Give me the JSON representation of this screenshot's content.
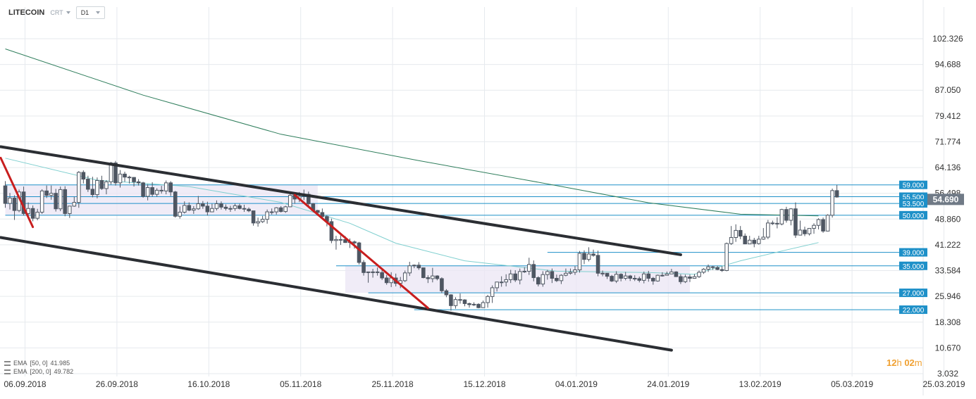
{
  "header": {
    "symbol": "LITECOIN",
    "type": "CRT",
    "timeframe": "D1"
  },
  "indicators": [
    {
      "label": "EMA",
      "params": "[50, 0]",
      "value": "41.985",
      "color": "#7fcfcf"
    },
    {
      "label": "EMA",
      "params": "[200, 0]",
      "value": "49.782",
      "color": "#2e7d5b"
    }
  ],
  "countdown": {
    "hours": "12",
    "h_unit": "h",
    "minutes": "02",
    "m_unit": "m"
  },
  "colors": {
    "bg": "#ffffff",
    "grid": "#e6eaee",
    "candle": "#4e5662",
    "level_line": "#1e90c8",
    "level_label_bg": "#1e90c8",
    "current_price_bg": "#707a86",
    "channel": "#2b2e33",
    "trend_red": "#c81e1e",
    "zone_fill": "#ebe6f4"
  },
  "chart_data": {
    "type": "candlestick",
    "y_axis": {
      "ticks": [
        "102.326",
        "94.688",
        "87.050",
        "79.412",
        "71.774",
        "64.136",
        "56.498",
        "48.860",
        "41.222",
        "33.584",
        "25.946",
        "18.308",
        "10.670",
        "3.032"
      ],
      "range": [
        3.032,
        102.326
      ]
    },
    "x_axis": {
      "ticks": [
        "06.09.2018",
        "26.09.2018",
        "16.10.2018",
        "05.11.2018",
        "25.11.2018",
        "15.12.2018",
        "04.01.2019",
        "24.01.2019",
        "13.02.2019",
        "05.03.2019",
        "25.03.2019"
      ]
    },
    "current_price": "54.690",
    "levels": [
      {
        "value": 59.0,
        "label": "59.000"
      },
      {
        "value": 55.5,
        "label": "55.500"
      },
      {
        "value": 53.5,
        "label": "53.500"
      },
      {
        "value": 50.0,
        "label": "50.000"
      },
      {
        "value": 39.0,
        "label": "39.000"
      },
      {
        "value": 35.0,
        "label": "35.000"
      },
      {
        "value": 27.0,
        "label": "27.000"
      },
      {
        "value": 22.0,
        "label": "22.000"
      }
    ],
    "ema50": [
      [
        0,
        66.9
      ],
      [
        20,
        60.4
      ],
      [
        40,
        58.5
      ],
      [
        60,
        53.8
      ],
      [
        75,
        47.6
      ],
      [
        85,
        41.7
      ],
      [
        100,
        36.5
      ],
      [
        120,
        33.4
      ],
      [
        140,
        33.0
      ],
      [
        150,
        32.5
      ],
      [
        160,
        36.5
      ],
      [
        170,
        39.7
      ],
      [
        177,
        41.9
      ]
    ],
    "ema200": [
      [
        0,
        99.3
      ],
      [
        30,
        85.6
      ],
      [
        60,
        74.0
      ],
      [
        90,
        66.2
      ],
      [
        120,
        58.8
      ],
      [
        140,
        53.7
      ],
      [
        160,
        50.3
      ],
      [
        177,
        49.8
      ]
    ],
    "candles": [
      [
        58.7,
        53.5,
        60.1,
        52.2
      ],
      [
        53.5,
        55.1,
        56.6,
        51.7
      ],
      [
        55.1,
        51.4,
        55.9,
        48.6
      ],
      [
        51.4,
        56.9,
        57.6,
        50.9
      ],
      [
        56.9,
        50.5,
        58.5,
        49.9
      ],
      [
        50.5,
        52.0,
        53.8,
        49.8
      ],
      [
        52.0,
        49.1,
        52.9,
        48.2
      ],
      [
        49.1,
        50.9,
        51.9,
        48.5
      ],
      [
        50.9,
        57.2,
        57.7,
        50.4
      ],
      [
        57.2,
        55.9,
        58.8,
        55.1
      ],
      [
        55.9,
        56.5,
        58.8,
        54.6
      ],
      [
        56.5,
        51.9,
        57.8,
        51.1
      ],
      [
        51.9,
        57.6,
        58.5,
        51.2
      ],
      [
        57.6,
        50.5,
        58.6,
        49.7
      ],
      [
        50.5,
        52.7,
        52.8,
        49.2
      ],
      [
        52.7,
        53.8,
        55.5,
        52.5
      ],
      [
        53.8,
        62.7,
        63.1,
        52.2
      ],
      [
        62.7,
        60.7,
        63.3,
        59.4
      ],
      [
        60.7,
        57.7,
        61.7,
        56.9
      ],
      [
        57.7,
        56.1,
        61.4,
        55.3
      ],
      [
        56.1,
        60.3,
        61.2,
        55.0
      ],
      [
        60.3,
        57.9,
        61.7,
        57.5
      ],
      [
        57.9,
        59.9,
        60.4,
        56.2
      ],
      [
        59.9,
        65.5,
        65.8,
        59.1
      ],
      [
        65.5,
        59.6,
        66.1,
        58.8
      ],
      [
        59.6,
        62.2,
        63.4,
        58.2
      ],
      [
        62.2,
        61.3,
        62.9,
        59.9
      ],
      [
        61.3,
        61.2,
        61.7,
        59.4
      ],
      [
        61.2,
        59.9,
        61.3,
        58.5
      ],
      [
        59.9,
        59.6,
        60.7,
        58.8
      ],
      [
        59.6,
        55.6,
        59.9,
        55.2
      ],
      [
        55.6,
        58.2,
        59.2,
        54.4
      ],
      [
        58.2,
        56.2,
        59.8,
        55.5
      ],
      [
        56.2,
        57.4,
        58.0,
        55.5
      ],
      [
        57.4,
        57.2,
        58.7,
        56.4
      ],
      [
        57.2,
        59.6,
        60.3,
        56.2
      ],
      [
        59.6,
        56.9,
        60.1,
        55.7
      ],
      [
        56.9,
        49.7,
        57.2,
        49.3
      ],
      [
        49.7,
        50.9,
        52.6,
        49.0
      ],
      [
        50.9,
        52.9,
        54.1,
        50.5
      ],
      [
        52.9,
        51.5,
        53.8,
        51.2
      ],
      [
        51.5,
        51.9,
        52.7,
        50.4
      ],
      [
        51.9,
        53.4,
        55.7,
        51.6
      ],
      [
        53.4,
        52.7,
        54.2,
        51.9
      ],
      [
        52.7,
        51.0,
        54.0,
        49.9
      ],
      [
        51.0,
        52.0,
        53.4,
        50.9
      ],
      [
        52.0,
        53.4,
        54.4,
        51.4
      ],
      [
        53.4,
        52.4,
        54.1,
        51.7
      ],
      [
        52.4,
        52.0,
        53.2,
        51.4
      ],
      [
        52.0,
        52.0,
        52.8,
        51.0
      ],
      [
        52.0,
        52.8,
        53.4,
        51.3
      ],
      [
        52.8,
        52.0,
        53.4,
        51.7
      ],
      [
        52.0,
        51.8,
        53.1,
        51.0
      ],
      [
        51.8,
        51.3,
        52.3,
        50.9
      ],
      [
        51.3,
        47.7,
        51.3,
        46.9
      ],
      [
        47.7,
        48.1,
        49.3,
        46.6
      ],
      [
        48.1,
        48.8,
        49.8,
        47.7
      ],
      [
        48.8,
        51.0,
        51.7,
        47.5
      ],
      [
        51.0,
        51.0,
        52.0,
        50.2
      ],
      [
        51.0,
        52.2,
        52.4,
        50.2
      ],
      [
        52.2,
        51.1,
        52.7,
        50.8
      ],
      [
        51.1,
        52.5,
        52.8,
        50.7
      ],
      [
        52.5,
        55.9,
        56.7,
        52.4
      ],
      [
        55.9,
        54.8,
        56.4,
        53.4
      ],
      [
        54.8,
        55.6,
        56.9,
        53.9
      ],
      [
        55.6,
        56.2,
        57.6,
        54.5
      ],
      [
        56.2,
        53.4,
        57.0,
        52.2
      ],
      [
        53.4,
        51.4,
        53.6,
        50.9
      ],
      [
        51.4,
        50.8,
        51.6,
        49.8
      ],
      [
        50.8,
        49.6,
        52.0,
        49.4
      ],
      [
        49.6,
        48.1,
        50.0,
        46.7
      ],
      [
        48.1,
        42.5,
        49.0,
        41.7
      ],
      [
        42.5,
        42.8,
        43.9,
        39.8
      ],
      [
        42.8,
        42.8,
        44.1,
        41.2
      ],
      [
        42.8,
        41.9,
        43.8,
        41.8
      ],
      [
        41.9,
        42.1,
        43.1,
        40.3
      ],
      [
        42.1,
        41.8,
        42.5,
        40.1
      ],
      [
        41.8,
        36.0,
        42.1,
        35.4
      ],
      [
        36.0,
        33.0,
        36.7,
        32.1
      ],
      [
        33.0,
        33.2,
        33.2,
        30.0
      ],
      [
        33.2,
        33.2,
        34.1,
        31.5
      ],
      [
        33.2,
        33.0,
        34.5,
        32.1
      ],
      [
        33.0,
        31.4,
        33.8,
        30.8
      ],
      [
        31.4,
        30.0,
        32.3,
        29.4
      ],
      [
        30.0,
        31.4,
        33.1,
        28.7
      ],
      [
        31.4,
        29.8,
        32.7,
        28.9
      ],
      [
        29.8,
        30.6,
        31.7,
        28.4
      ],
      [
        30.6,
        32.9,
        33.6,
        30.2
      ],
      [
        32.9,
        35.0,
        36.2,
        32.0
      ],
      [
        35.0,
        35.2,
        35.4,
        34.3
      ],
      [
        35.2,
        34.4,
        36.1,
        33.8
      ],
      [
        34.4,
        31.5,
        34.5,
        31.3
      ],
      [
        31.5,
        31.2,
        32.2,
        29.9
      ],
      [
        31.2,
        32.0,
        34.4,
        30.1
      ],
      [
        32.0,
        31.2,
        32.2,
        30.7
      ],
      [
        31.2,
        27.6,
        31.6,
        26.9
      ],
      [
        27.6,
        26.4,
        28.1,
        25.7
      ],
      [
        26.4,
        23.2,
        26.6,
        21.7
      ],
      [
        23.2,
        25.0,
        25.7,
        22.3
      ],
      [
        25.0,
        24.9,
        26.8,
        23.8
      ],
      [
        24.9,
        23.8,
        25.1,
        23.0
      ],
      [
        23.8,
        23.5,
        24.1,
        22.6
      ],
      [
        23.5,
        23.6,
        24.2,
        23.1
      ],
      [
        23.6,
        22.6,
        23.9,
        22.4
      ],
      [
        22.6,
        24.1,
        24.7,
        22.6
      ],
      [
        24.1,
        25.9,
        26.4,
        22.6
      ],
      [
        25.9,
        28.5,
        29.2,
        24.0
      ],
      [
        28.5,
        30.2,
        30.2,
        27.4
      ],
      [
        30.2,
        30.2,
        31.9,
        28.8
      ],
      [
        30.2,
        30.9,
        32.5,
        28.9
      ],
      [
        30.9,
        32.6,
        33.8,
        29.9
      ],
      [
        32.6,
        30.8,
        33.7,
        30.2
      ],
      [
        30.8,
        33.3,
        34.2,
        29.5
      ],
      [
        33.3,
        33.4,
        34.6,
        32.9
      ],
      [
        33.4,
        35.4,
        37.4,
        32.3
      ],
      [
        35.4,
        31.5,
        36.6,
        30.4
      ],
      [
        31.5,
        29.6,
        31.9,
        28.9
      ],
      [
        29.6,
        32.4,
        33.4,
        28.8
      ],
      [
        32.4,
        33.3,
        33.8,
        30.9
      ],
      [
        33.3,
        31.3,
        34.2,
        29.9
      ],
      [
        31.3,
        30.6,
        32.4,
        30.2
      ],
      [
        30.6,
        32.2,
        32.5,
        29.6
      ],
      [
        32.2,
        32.8,
        34.2,
        31.9
      ],
      [
        32.8,
        33.1,
        34.2,
        32.4
      ],
      [
        33.1,
        33.8,
        34.9,
        32.3
      ],
      [
        33.8,
        38.7,
        39.4,
        33.0
      ],
      [
        38.7,
        36.9,
        39.6,
        35.5
      ],
      [
        36.9,
        38.5,
        40.5,
        36.3
      ],
      [
        38.5,
        38.1,
        39.8,
        37.7
      ],
      [
        38.1,
        32.8,
        39.5,
        31.9
      ],
      [
        32.8,
        32.8,
        33.6,
        31.9
      ],
      [
        32.8,
        31.9,
        32.8,
        31.1
      ],
      [
        31.9,
        30.5,
        32.3,
        30.2
      ],
      [
        30.5,
        32.5,
        33.4,
        29.9
      ],
      [
        32.5,
        31.3,
        32.8,
        30.4
      ],
      [
        31.3,
        32.0,
        33.2,
        30.7
      ],
      [
        32.0,
        31.3,
        32.3,
        30.5
      ],
      [
        31.3,
        31.2,
        32.2,
        30.5
      ],
      [
        31.2,
        30.7,
        31.8,
        30.1
      ],
      [
        30.7,
        32.6,
        33.3,
        29.8
      ],
      [
        32.6,
        31.3,
        33.5,
        30.3
      ],
      [
        31.3,
        30.5,
        31.7,
        29.4
      ],
      [
        30.5,
        32.2,
        32.4,
        30.3
      ],
      [
        32.2,
        32.2,
        33.1,
        31.8
      ],
      [
        32.2,
        32.6,
        33.3,
        32.3
      ],
      [
        32.6,
        33.2,
        34.1,
        32.6
      ],
      [
        33.2,
        31.8,
        33.4,
        31.7
      ],
      [
        31.8,
        30.3,
        32.5,
        29.6
      ],
      [
        30.3,
        31.7,
        32.4,
        29.9
      ],
      [
        31.7,
        31.3,
        32.4,
        30.2
      ],
      [
        31.3,
        31.8,
        32.6,
        31.5
      ],
      [
        31.8,
        33.1,
        33.6,
        31.4
      ],
      [
        33.1,
        34.0,
        34.3,
        32.6
      ],
      [
        34.0,
        34.7,
        35.4,
        33.2
      ],
      [
        34.7,
        34.5,
        35.0,
        33.8
      ],
      [
        34.5,
        33.9,
        35.0,
        33.7
      ],
      [
        33.9,
        33.6,
        34.9,
        33.2
      ],
      [
        33.6,
        41.6,
        41.9,
        33.4
      ],
      [
        41.6,
        43.4,
        46.8,
        41.2
      ],
      [
        43.4,
        45.5,
        47.3,
        42.1
      ],
      [
        45.5,
        43.8,
        46.8,
        42.9
      ],
      [
        43.8,
        41.5,
        44.6,
        41.4
      ],
      [
        41.5,
        42.6,
        43.9,
        42.0
      ],
      [
        42.6,
        41.6,
        43.3,
        40.5
      ],
      [
        41.6,
        42.9,
        43.9,
        41.3
      ],
      [
        42.9,
        43.5,
        46.2,
        42.7
      ],
      [
        43.5,
        47.7,
        48.6,
        42.9
      ],
      [
        47.7,
        47.6,
        48.4,
        47.1
      ],
      [
        47.6,
        47.4,
        49.4,
        46.1
      ],
      [
        47.4,
        51.7,
        51.9,
        47.0
      ],
      [
        51.7,
        48.5,
        52.5,
        47.8
      ],
      [
        48.5,
        51.9,
        52.1,
        47.0
      ],
      [
        51.9,
        44.1,
        53.8,
        43.3
      ],
      [
        44.1,
        45.6,
        48.4,
        44.2
      ],
      [
        45.6,
        44.5,
        46.6,
        43.8
      ],
      [
        44.5,
        46.1,
        46.2,
        44.0
      ],
      [
        46.1,
        47.0,
        47.6,
        44.5
      ],
      [
        47.0,
        48.7,
        49.1,
        45.8
      ],
      [
        48.7,
        45.3,
        49.3,
        44.8
      ],
      [
        45.3,
        50.0,
        50.3,
        45.2
      ],
      [
        50.0,
        57.3,
        57.9,
        49.3
      ],
      [
        57.3,
        55.4,
        59.0,
        55.2
      ]
    ]
  }
}
